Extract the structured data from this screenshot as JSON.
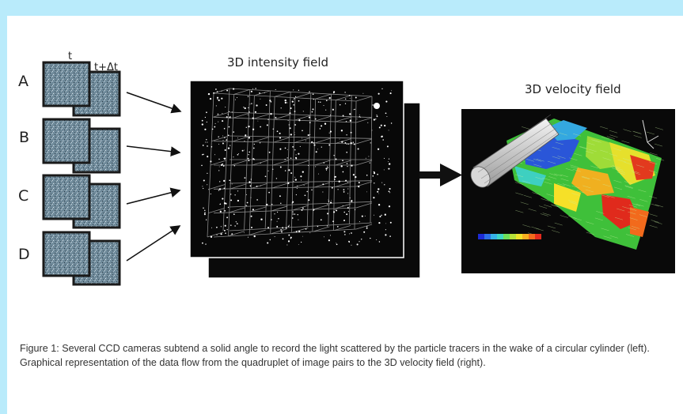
{
  "cameras": {
    "label_t": "t",
    "label_t_dt": "t+Δt",
    "letters": [
      "A",
      "B",
      "C",
      "D"
    ]
  },
  "intensity_title": "3D intensity field",
  "velocity_title": "3D velocity field",
  "caption": "Figure 1: Several CCD cameras subtend a solid angle to record the light scattered by the particle tracers in the wake of a circular cylinder (left). Graphical representation of the data flow from the quadruplet of image pairs to the 3D velocity field (right).",
  "colors": {
    "background": "#b9ebfb",
    "camera_frame": "#1a1a1a",
    "camera_fill": "#6f8a9a",
    "field_bg": "#080808"
  },
  "colorbar": [
    "#1d2bd6",
    "#2c6fe8",
    "#36b2e8",
    "#3fd6c4",
    "#6fe05a",
    "#b6e23a",
    "#f0e32a",
    "#f8b020",
    "#f26a1c",
    "#e22a1e"
  ]
}
